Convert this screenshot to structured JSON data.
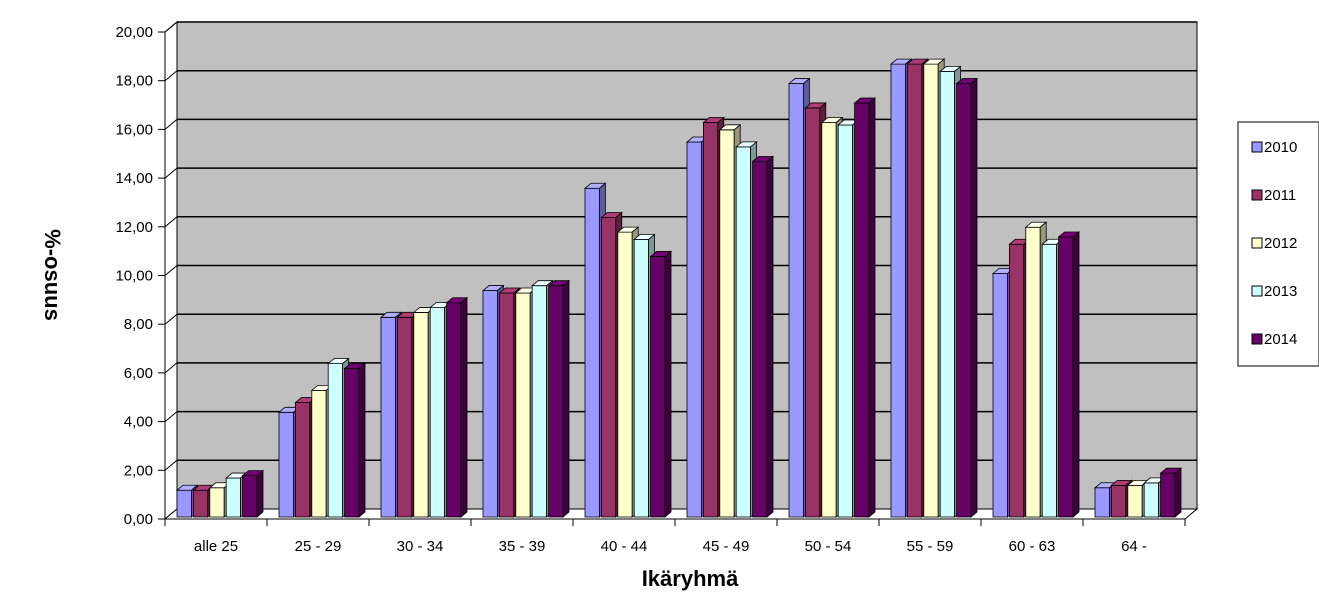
{
  "chart_data": {
    "type": "bar",
    "style": "3d-clustered-column",
    "xlabel": "Ikäryhmä",
    "ylabel": "%-osuus",
    "ylim": [
      0,
      20
    ],
    "yticks": [
      "0,00",
      "2,00",
      "4,00",
      "6,00",
      "8,00",
      "10,00",
      "12,00",
      "14,00",
      "16,00",
      "18,00",
      "20,00"
    ],
    "categories": [
      "alle 25",
      "25 - 29",
      "30 - 34",
      "35 - 39",
      "40 - 44",
      "45 - 49",
      "50 - 54",
      "55 - 59",
      "60 - 63",
      "64 -"
    ],
    "series": [
      {
        "name": "2010",
        "color": "#9999ff",
        "values": [
          1.1,
          4.3,
          8.2,
          9.3,
          13.5,
          15.4,
          17.8,
          18.6,
          10.0,
          1.2
        ]
      },
      {
        "name": "2011",
        "color": "#993366",
        "values": [
          1.1,
          4.7,
          8.2,
          9.2,
          12.3,
          16.2,
          16.8,
          18.6,
          11.2,
          1.3
        ]
      },
      {
        "name": "2012",
        "color": "#ffffcc",
        "values": [
          1.2,
          5.2,
          8.4,
          9.2,
          11.7,
          15.9,
          16.2,
          18.6,
          11.9,
          1.3
        ]
      },
      {
        "name": "2013",
        "color": "#ccffff",
        "values": [
          1.6,
          6.3,
          8.6,
          9.5,
          11.4,
          15.2,
          16.1,
          18.3,
          11.2,
          1.4
        ]
      },
      {
        "name": "2014",
        "color": "#660066",
        "values": [
          1.7,
          6.1,
          8.8,
          9.5,
          10.7,
          14.6,
          17.0,
          17.8,
          11.5,
          1.8
        ]
      }
    ],
    "grid": true,
    "legend_position": "right",
    "colors": {
      "wall": "#c0c0c0",
      "floor": "#ffffff",
      "grid": "#000000"
    }
  }
}
